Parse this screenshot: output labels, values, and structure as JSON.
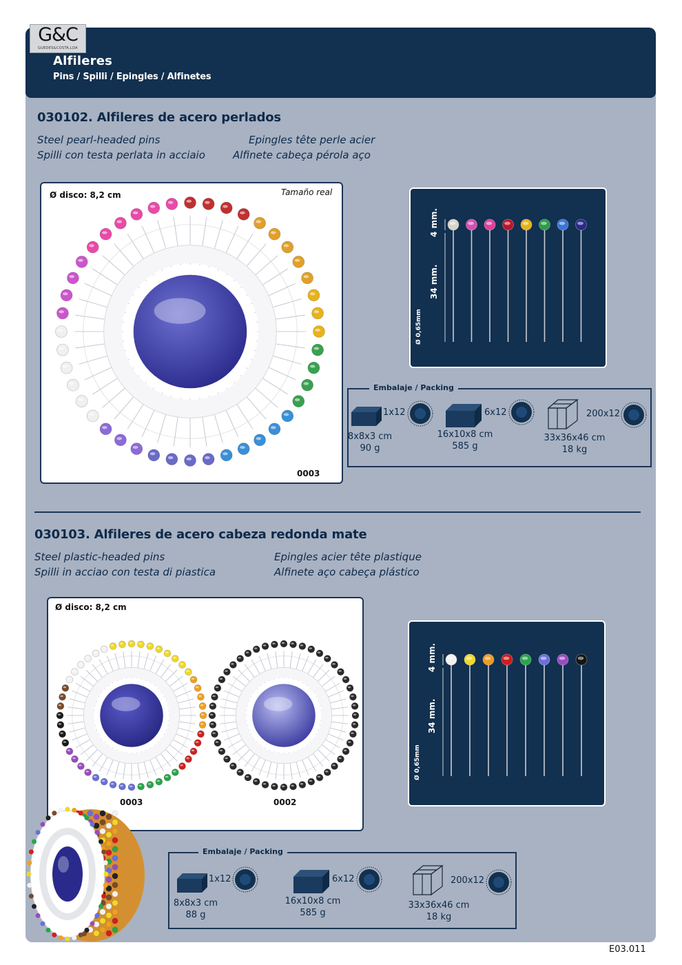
{
  "header": {
    "logo_main": "G&C",
    "logo_sub": "GUEDES&COSTA,LDA",
    "title": "Alfileres",
    "subtitle": "Pins / Spilli / Epingles / Alfinetes"
  },
  "section1": {
    "title": "030102. Alfileres de acero perlados",
    "trans_en": "Steel pearl-headed pins",
    "trans_fr": "Epingles tête perle acier",
    "trans_it": "Spilli con testa perlata in acciaio",
    "trans_pt": "Alfinete cabeça pérola aço",
    "disc_label": "Ø disco: 8,2 cm",
    "real_size": "Tamaño real",
    "code": "0003",
    "dim_head": "4 mm.",
    "dim_shaft": "34 mm.",
    "dim_diam": "Ø 0,65mm",
    "pin_colors": [
      "#d8d4c8",
      "#d64fb0",
      "#e0409a",
      "#b8162a",
      "#e8b21a",
      "#2e9a48",
      "#3a74d8",
      "#2a2a8a"
    ],
    "packing": {
      "caption": "Embalaje / Packing",
      "items": [
        {
          "qty": "1x12",
          "dims": "8x8x3 cm",
          "weight": "90 g"
        },
        {
          "qty": "6x12",
          "dims": "16x10x8 cm",
          "weight": "585 g"
        },
        {
          "qty": "200x12",
          "dims": "33x36x46 cm",
          "weight": "18 kg"
        }
      ]
    }
  },
  "section2": {
    "title": "030103. Alfileres de acero cabeza redonda mate",
    "trans_en": "Steel plastic-headed pins",
    "trans_fr": "Epingles acier tête plastique",
    "trans_it": "Spilli in acciao con testa di piastica",
    "trans_pt": "Alfinete aço cabeça plástico",
    "disc_label": "Ø disco: 8,2 cm",
    "code_a": "0003",
    "code_b": "0002",
    "dim_head": "4 mm.",
    "dim_shaft": "34 mm.",
    "dim_diam": "Ø 0,65mm",
    "pin_colors": [
      "#f2f2f2",
      "#f0d82a",
      "#f09a20",
      "#d01a1a",
      "#2aa44a",
      "#6a70d8",
      "#9a4ac0",
      "#151515"
    ],
    "packing": {
      "caption": "Embalaje / Packing",
      "items": [
        {
          "qty": "1x12",
          "dims": "8x8x3 cm",
          "weight": "88 g"
        },
        {
          "qty": "6x12",
          "dims": "16x10x8 cm",
          "weight": "585 g"
        },
        {
          "qty": "200x12",
          "dims": "33x36x46 cm",
          "weight": "18 kg"
        }
      ]
    }
  },
  "footer": {
    "code": "E03.011"
  }
}
